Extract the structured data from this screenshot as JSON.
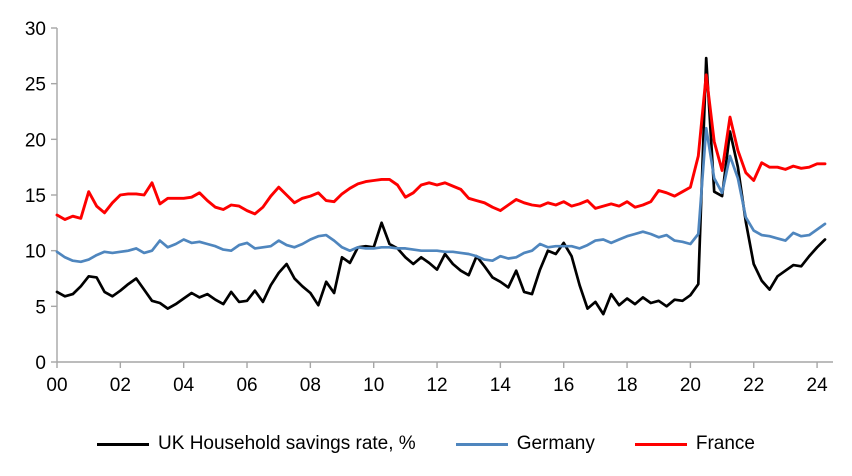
{
  "chart_data": {
    "type": "line",
    "title": "",
    "xlabel": "",
    "ylabel": "",
    "ylim": [
      0,
      30
    ],
    "grid": false,
    "legend_position": "bottom",
    "axis_color": "#a6a6a6",
    "frequency": "quarterly",
    "x_start_year": 2000,
    "y_ticks": [
      0,
      5,
      10,
      15,
      20,
      25,
      30
    ],
    "x_tick_labels": [
      "00",
      "02",
      "04",
      "06",
      "08",
      "10",
      "12",
      "14",
      "16",
      "18",
      "20",
      "22",
      "24"
    ],
    "series": [
      {
        "name": "UK Household savings rate, %",
        "color": "#000000",
        "values": [
          6.3,
          5.9,
          6.1,
          6.8,
          7.7,
          7.6,
          6.3,
          5.9,
          6.4,
          7.0,
          7.5,
          6.5,
          5.5,
          5.3,
          4.8,
          5.2,
          5.7,
          6.2,
          5.8,
          6.1,
          5.6,
          5.2,
          6.3,
          5.4,
          5.5,
          6.4,
          5.4,
          6.9,
          8.0,
          8.8,
          7.5,
          6.8,
          6.2,
          5.1,
          7.2,
          6.2,
          9.4,
          8.9,
          10.3,
          10.4,
          10.3,
          12.5,
          10.6,
          10.2,
          9.4,
          8.8,
          9.4,
          8.9,
          8.3,
          9.7,
          8.8,
          8.2,
          7.8,
          9.5,
          8.6,
          7.6,
          7.2,
          6.7,
          8.2,
          6.3,
          6.1,
          8.3,
          10.0,
          9.7,
          10.7,
          9.5,
          6.9,
          4.8,
          5.4,
          4.3,
          6.1,
          5.1,
          5.7,
          5.2,
          5.8,
          5.3,
          5.5,
          5.0,
          5.6,
          5.5,
          6.0,
          7.0,
          27.3,
          15.3,
          14.9,
          20.7,
          17.5,
          12.6,
          8.8,
          7.3,
          6.5,
          7.7,
          8.2,
          8.7,
          8.6,
          9.5,
          10.3,
          11.0
        ]
      },
      {
        "name": "Germany",
        "color": "#4f86be",
        "values": [
          9.9,
          9.4,
          9.1,
          9.0,
          9.2,
          9.6,
          9.9,
          9.8,
          9.9,
          10.0,
          10.2,
          9.8,
          10.0,
          10.9,
          10.3,
          10.6,
          11.0,
          10.7,
          10.8,
          10.6,
          10.4,
          10.1,
          10.0,
          10.5,
          10.7,
          10.2,
          10.3,
          10.4,
          10.9,
          10.5,
          10.3,
          10.6,
          11.0,
          11.3,
          11.4,
          10.9,
          10.3,
          10.0,
          10.3,
          10.2,
          10.2,
          10.3,
          10.3,
          10.2,
          10.2,
          10.1,
          10.0,
          10.0,
          10.0,
          9.9,
          9.9,
          9.8,
          9.7,
          9.5,
          9.2,
          9.1,
          9.5,
          9.3,
          9.4,
          9.8,
          10.0,
          10.6,
          10.3,
          10.4,
          10.4,
          10.4,
          10.2,
          10.5,
          10.9,
          11.0,
          10.7,
          11.0,
          11.3,
          11.5,
          11.7,
          11.5,
          11.2,
          11.4,
          10.9,
          10.8,
          10.6,
          11.5,
          21.0,
          16.5,
          15.2,
          18.5,
          16.5,
          13.0,
          11.8,
          11.4,
          11.3,
          11.1,
          10.9,
          11.6,
          11.3,
          11.4,
          11.9,
          12.4
        ]
      },
      {
        "name": "France",
        "color": "#fe0000",
        "values": [
          13.2,
          12.8,
          13.1,
          12.9,
          15.3,
          14.0,
          13.4,
          14.3,
          15.0,
          15.1,
          15.1,
          15.0,
          16.1,
          14.2,
          14.7,
          14.7,
          14.7,
          14.8,
          15.2,
          14.5,
          13.9,
          13.7,
          14.1,
          14.0,
          13.6,
          13.3,
          13.9,
          14.9,
          15.7,
          15.0,
          14.3,
          14.7,
          14.9,
          15.2,
          14.5,
          14.4,
          15.1,
          15.6,
          16.0,
          16.2,
          16.3,
          16.4,
          16.4,
          15.9,
          14.8,
          15.2,
          15.9,
          16.1,
          15.9,
          16.1,
          15.8,
          15.5,
          14.7,
          14.5,
          14.3,
          13.9,
          13.6,
          14.1,
          14.6,
          14.3,
          14.1,
          14.0,
          14.3,
          14.1,
          14.4,
          14.0,
          14.2,
          14.5,
          13.8,
          14.0,
          14.2,
          14.0,
          14.4,
          13.9,
          14.1,
          14.4,
          15.4,
          15.2,
          14.9,
          15.3,
          15.7,
          18.5,
          25.8,
          19.8,
          17.2,
          22.0,
          19.0,
          17.0,
          16.3,
          17.9,
          17.5,
          17.5,
          17.3,
          17.6,
          17.4,
          17.5,
          17.8,
          17.8
        ]
      }
    ]
  },
  "legend": {
    "items": [
      {
        "label": "UK Household savings rate, %",
        "color": "#000000"
      },
      {
        "label": "Germany",
        "color": "#4f86be"
      },
      {
        "label": "France",
        "color": "#fe0000"
      }
    ]
  }
}
